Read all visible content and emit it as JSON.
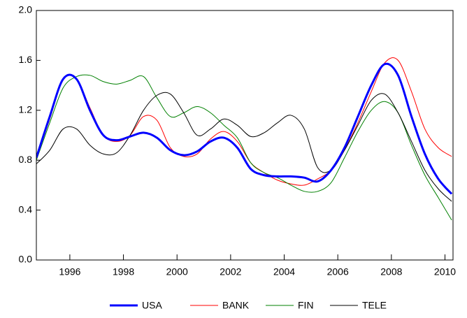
{
  "chart_data": {
    "type": "line",
    "x": [
      1994.75,
      1995.25,
      1995.75,
      1996.25,
      1996.75,
      1997.25,
      1997.75,
      1998.25,
      1998.75,
      1999.25,
      1999.75,
      2000.25,
      2000.75,
      2001.25,
      2001.75,
      2002.25,
      2002.75,
      2003.25,
      2003.75,
      2004.25,
      2004.75,
      2005.25,
      2005.75,
      2006.25,
      2006.75,
      2007.25,
      2007.75,
      2008.25,
      2008.75,
      2009.25,
      2009.75,
      2010.25
    ],
    "series": [
      {
        "name": "USA",
        "color": "#0000ff",
        "values": [
          0.82,
          1.15,
          1.45,
          1.45,
          1.2,
          1.0,
          0.96,
          0.99,
          1.02,
          0.98,
          0.88,
          0.84,
          0.87,
          0.95,
          0.98,
          0.9,
          0.73,
          0.68,
          0.67,
          0.67,
          0.66,
          0.63,
          0.72,
          0.9,
          1.15,
          1.4,
          1.57,
          1.48,
          1.15,
          0.85,
          0.65,
          0.53
        ]
      },
      {
        "name": "BANK",
        "color": "#ff0000",
        "values": [
          0.82,
          1.13,
          1.45,
          1.45,
          1.22,
          1.0,
          0.95,
          1.0,
          1.15,
          1.12,
          0.9,
          0.83,
          0.85,
          0.97,
          1.03,
          0.95,
          0.78,
          0.7,
          0.64,
          0.61,
          0.6,
          0.65,
          0.72,
          0.88,
          1.1,
          1.35,
          1.58,
          1.6,
          1.35,
          1.05,
          0.9,
          0.83
        ]
      },
      {
        "name": "FIN",
        "color": "#008000",
        "values": [
          0.8,
          1.1,
          1.38,
          1.47,
          1.48,
          1.43,
          1.41,
          1.44,
          1.47,
          1.3,
          1.15,
          1.18,
          1.23,
          1.18,
          1.08,
          0.98,
          0.78,
          0.7,
          0.66,
          0.6,
          0.55,
          0.55,
          0.62,
          0.82,
          1.03,
          1.2,
          1.27,
          1.18,
          0.92,
          0.68,
          0.5,
          0.32
        ]
      },
      {
        "name": "TELE",
        "color": "#000000",
        "values": [
          0.77,
          0.88,
          1.05,
          1.05,
          0.92,
          0.85,
          0.86,
          1.0,
          1.2,
          1.32,
          1.33,
          1.18,
          1.0,
          1.05,
          1.13,
          1.08,
          0.99,
          1.02,
          1.1,
          1.16,
          1.05,
          0.74,
          0.72,
          0.88,
          1.08,
          1.28,
          1.33,
          1.18,
          0.95,
          0.72,
          0.57,
          0.47
        ]
      }
    ],
    "xlim": [
      1994.75,
      2010.3
    ],
    "xticks": [
      1996,
      1998,
      2000,
      2002,
      2004,
      2006,
      2008,
      2010
    ],
    "ylim": [
      0,
      2
    ],
    "yticks": [
      {
        "value": 0,
        "label": "0.0"
      },
      0.4,
      0.8,
      1.2,
      1.6,
      {
        "value": 2,
        "label": "2.0"
      }
    ],
    "grid": false
  }
}
